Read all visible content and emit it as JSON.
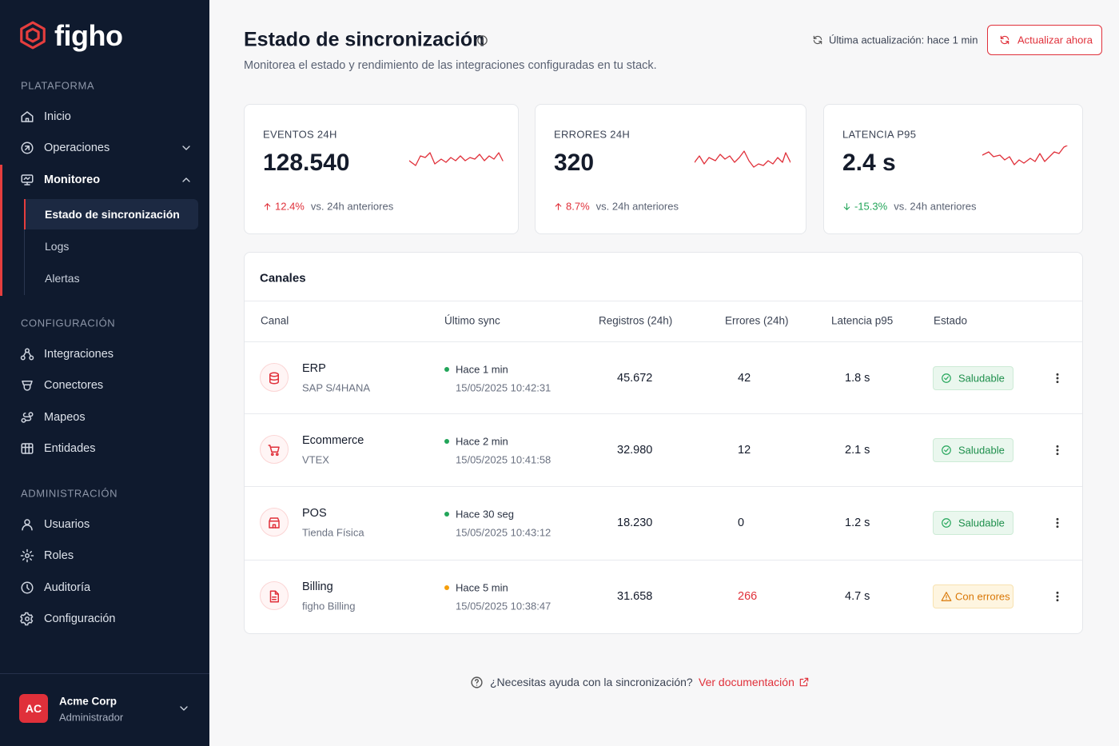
{
  "sidebar": {
    "brand": "figho",
    "sections": [
      {
        "title": "PLATAFORMA",
        "items": [
          {
            "label": "Inicio"
          },
          {
            "label": "Operaciones",
            "expanded": false
          },
          {
            "label": "Monitoreo",
            "expanded": true,
            "children": [
              {
                "label": "Estado de sincronización",
                "active": true
              },
              {
                "label": "Logs"
              },
              {
                "label": "Alertas"
              }
            ]
          }
        ]
      },
      {
        "title": "CONFIGURACIÓN",
        "items": [
          {
            "label": "Integraciones"
          },
          {
            "label": "Conectores"
          },
          {
            "label": "Mapeos"
          },
          {
            "label": "Entidades"
          }
        ]
      },
      {
        "title": "ADMINISTRACIÓN",
        "items": [
          {
            "label": "Usuarios"
          },
          {
            "label": "Roles"
          },
          {
            "label": "Auditoría"
          },
          {
            "label": "Configuración"
          }
        ]
      }
    ],
    "user": {
      "initials": "AC",
      "name": "Acme Corp",
      "role": "Administrador"
    }
  },
  "header": {
    "title": "Estado de sincronización",
    "subtitle": "Monitorea el estado y rendimiento de las integraciones configuradas en tu stack.",
    "last_update": "Última actualización: hace 1 min",
    "refresh_button": "Actualizar ahora"
  },
  "kpis": [
    {
      "label": "EVENTOS 24H",
      "value": "128.540",
      "change": "12.4%",
      "compare": "vs. 24h anteriores"
    },
    {
      "label": "ERRORES 24H",
      "value": "320",
      "change": "8.7%",
      "compare": "vs. 24h anteriores"
    },
    {
      "label": "LATENCIA P95",
      "value": "2.4 s",
      "change": "-15.3%",
      "compare": "vs. 24h anteriores"
    }
  ],
  "table": {
    "title": "Canales",
    "columns": [
      "Canal",
      "Último sync",
      "Registros (24h)",
      "Errores (24h)",
      "Latencia p95",
      "Estado"
    ],
    "rows": [
      {
        "name": "ERP",
        "system": "SAP S/4HANA",
        "sync": "Hace 1 min",
        "timestamp": "15/05/2025 10:42:31",
        "records": "45.672",
        "errors": "42",
        "latency": "1.8 s",
        "status": "Saludable",
        "color": "#22a559"
      },
      {
        "name": "Ecommerce",
        "system": "VTEX",
        "sync": "Hace 2 min",
        "timestamp": "15/05/2025 10:41:58",
        "records": "32.980",
        "errors": "12",
        "latency": "2.1 s",
        "status": "Saludable",
        "color": "#22a559"
      },
      {
        "name": "POS",
        "system": "Tienda Física",
        "sync": "Hace 30 seg",
        "timestamp": "15/05/2025 10:43:12",
        "records": "18.230",
        "errors": "0",
        "latency": "1.2 s",
        "status": "Saludable",
        "color": "#22a559"
      },
      {
        "name": "Billing",
        "system": "figho Billing",
        "sync": "Hace 5 min",
        "timestamp": "15/05/2025 10:38:47",
        "records": "31.658",
        "errors": "266",
        "latency": "4.7 s",
        "status": "Con errores",
        "color": "#f59e0b"
      }
    ]
  },
  "footer": {
    "question": "¿Necesitas ayuda con la sincronización?",
    "link": "Ver documentación"
  }
}
